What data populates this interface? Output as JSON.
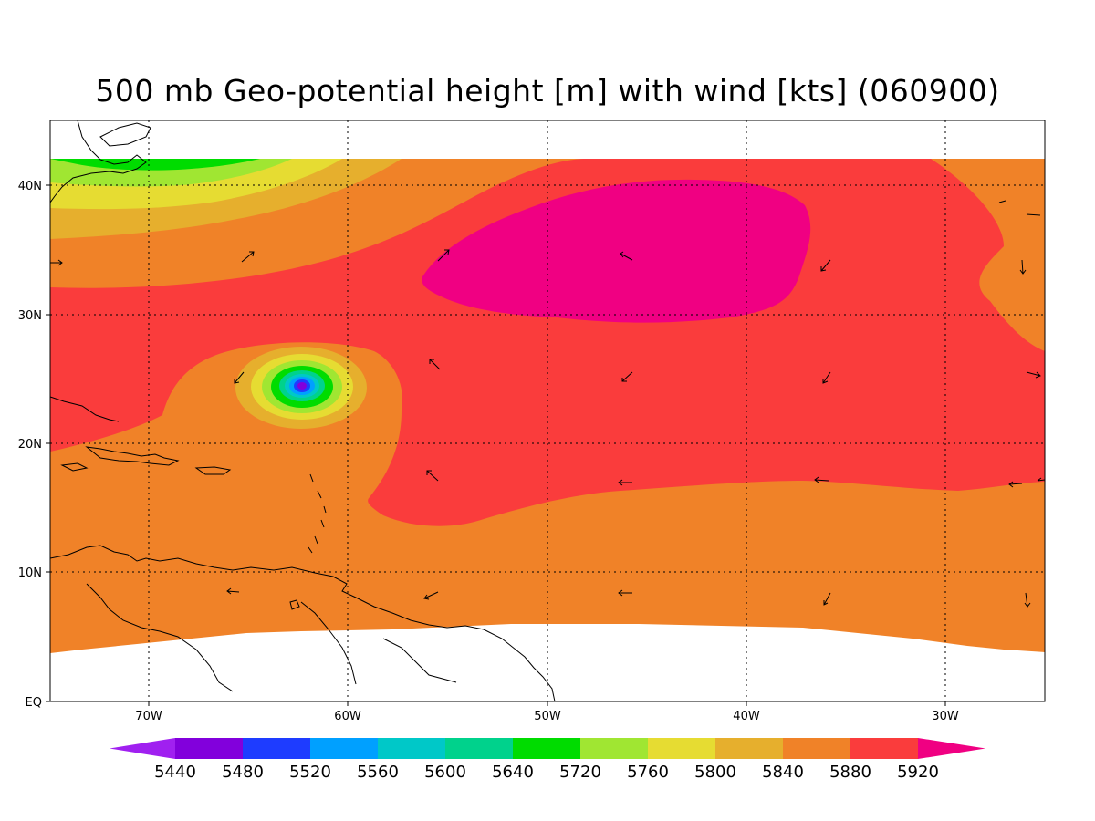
{
  "title": "500 mb Geo-potential height [m] with wind [kts] (060900)",
  "map": {
    "lat_labels": [
      "40N",
      "30N",
      "20N",
      "10N",
      "EQ"
    ],
    "lon_labels": [
      "70W",
      "60W",
      "50W",
      "40W",
      "30W"
    ],
    "fill_colors": {
      "h5440": "#a020f0",
      "h5480": "#8200dc",
      "h5520": "#1e3cff",
      "h5560": "#00a0ff",
      "h5600": "#00c8c8",
      "h5640": "#00d28c",
      "h5720": "#00dc00",
      "h5760": "#a0e632",
      "h5800": "#e6dc32",
      "h5840": "#e6af2d",
      "h5880": "#f08228",
      "h5920": "#fa3c3c",
      "h5960": "#f00082"
    }
  },
  "colorbar": {
    "labels": [
      "5440",
      "5480",
      "5520",
      "5560",
      "5600",
      "5640",
      "5720",
      "5760",
      "5800",
      "5840",
      "5880",
      "5920"
    ],
    "colors": [
      "#a020f0",
      "#8200dc",
      "#1e3cff",
      "#00a0ff",
      "#00c8c8",
      "#00d28c",
      "#00dc00",
      "#a0e632",
      "#e6dc32",
      "#e6af2d",
      "#f08228",
      "#fa3c3c",
      "#f00082"
    ]
  }
}
